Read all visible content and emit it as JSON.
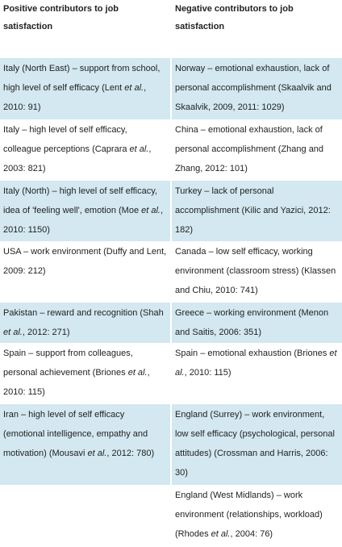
{
  "header": {
    "left": "Positive contributors to job satisfaction",
    "right": "Negative contributors to job satisfaction"
  },
  "rows": [
    {
      "left": [
        "Italy (North East) – support from school, high level of self efficacy (Lent ",
        "et al.",
        ", 2010: 91)"
      ],
      "right": [
        "Norway – emotional exhaustion, lack of personal accomplishment (Skaalvik and Skaalvik, 2009, 2011: 1029)"
      ]
    },
    {
      "left": [
        "Italy – high level of self efficacy, colleague perceptions (Caprara ",
        "et al.",
        ", 2003: 821)"
      ],
      "right": [
        "China – emotional exhaustion, lack of personal accomplishment (Zhang and Zhang, 2012: 101)"
      ]
    },
    {
      "left": [
        "Italy (North) – high level of self efficacy, idea of 'feeling well', emotion (Moe ",
        "et al.",
        ", 2010: 1150)"
      ],
      "right": [
        "Turkey – lack of personal accomplishment (Kilic and Yazici, 2012: 182)"
      ]
    },
    {
      "left": [
        "USA – work environment (Duffy and Lent, 2009: 212)"
      ],
      "right": [
        "Canada – low self efficacy, working environment (classroom stress) (Klassen and Chiu, 2010: 741)"
      ]
    },
    {
      "left": [
        "Pakistan – reward and recognition (Shah ",
        "et al.",
        ", 2012: 271)"
      ],
      "right": [
        "Greece – working environment (Menon and Saitis, 2006: 351)"
      ]
    },
    {
      "left": [
        "Spain – support from colleagues, personal achievement (Briones ",
        "et al.",
        ", 2010: 115)"
      ],
      "right": [
        "Spain – emotional exhaustion (Briones ",
        "et al.",
        ", 2010: 115)"
      ]
    },
    {
      "left": [
        "Iran – high level of self efficacy (emotional intelligence, empathy and motivation) (Mousavi ",
        "et al.",
        ", 2012: 780)"
      ],
      "right": [
        "England (Surrey) – work environment, low self efficacy (psychological, personal attitudes) (Crossman and Harris, 2006: 30)"
      ]
    },
    {
      "left": [],
      "right": [
        "England (West Midlands) – work environment (relationships, workload) (Rhodes ",
        "et al.",
        ", 2004: 76)"
      ]
    }
  ]
}
